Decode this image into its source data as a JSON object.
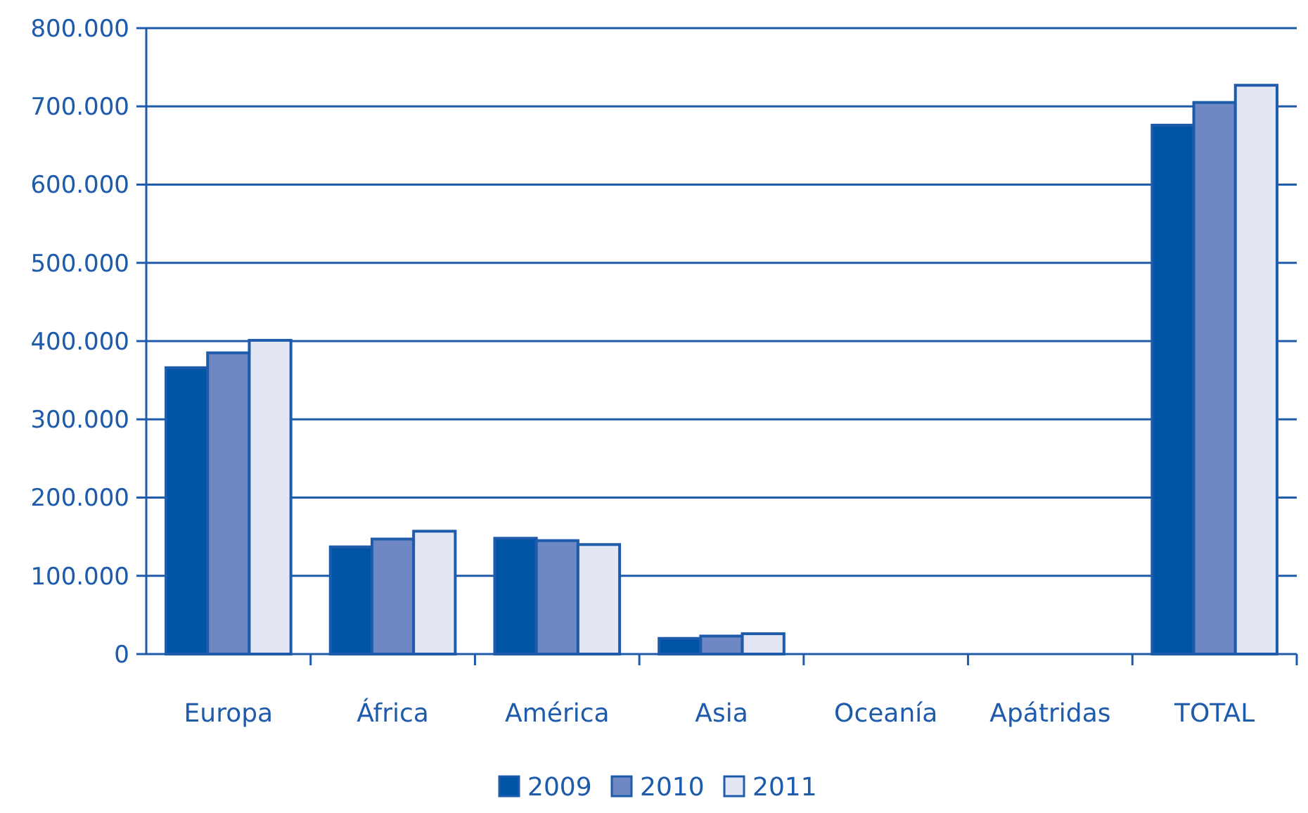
{
  "chart_data": {
    "type": "bar",
    "categories": [
      "Europa",
      "África",
      "América",
      "Asia",
      "Oceanía",
      "Apátridas",
      "TOTAL"
    ],
    "series": [
      {
        "name": "2009",
        "color": "#0054a6",
        "values": [
          366000,
          137000,
          148000,
          20000,
          0,
          0,
          676000
        ]
      },
      {
        "name": "2010",
        "color": "#6f88c4",
        "values": [
          385000,
          147000,
          145000,
          23000,
          0,
          0,
          705000
        ]
      },
      {
        "name": "2011",
        "color": "#e3e7f4",
        "values": [
          401000,
          157000,
          140000,
          26000,
          0,
          0,
          727000
        ]
      }
    ],
    "ylim": [
      0,
      800000
    ],
    "yticks": [
      0,
      {
        "value": 100000,
        "label": "100.000"
      },
      {
        "value": 200000,
        "label": "200.000"
      },
      {
        "value": 300000,
        "label": "300.000"
      },
      {
        "value": 400000,
        "label": "400.000"
      },
      {
        "value": 500000,
        "label": "500.000"
      },
      {
        "value": 600000,
        "label": "600.000"
      },
      {
        "value": 700000,
        "label": "700.000"
      },
      {
        "value": 800000,
        "label": "800.000"
      }
    ],
    "grid": "y",
    "legend": "bottom"
  }
}
